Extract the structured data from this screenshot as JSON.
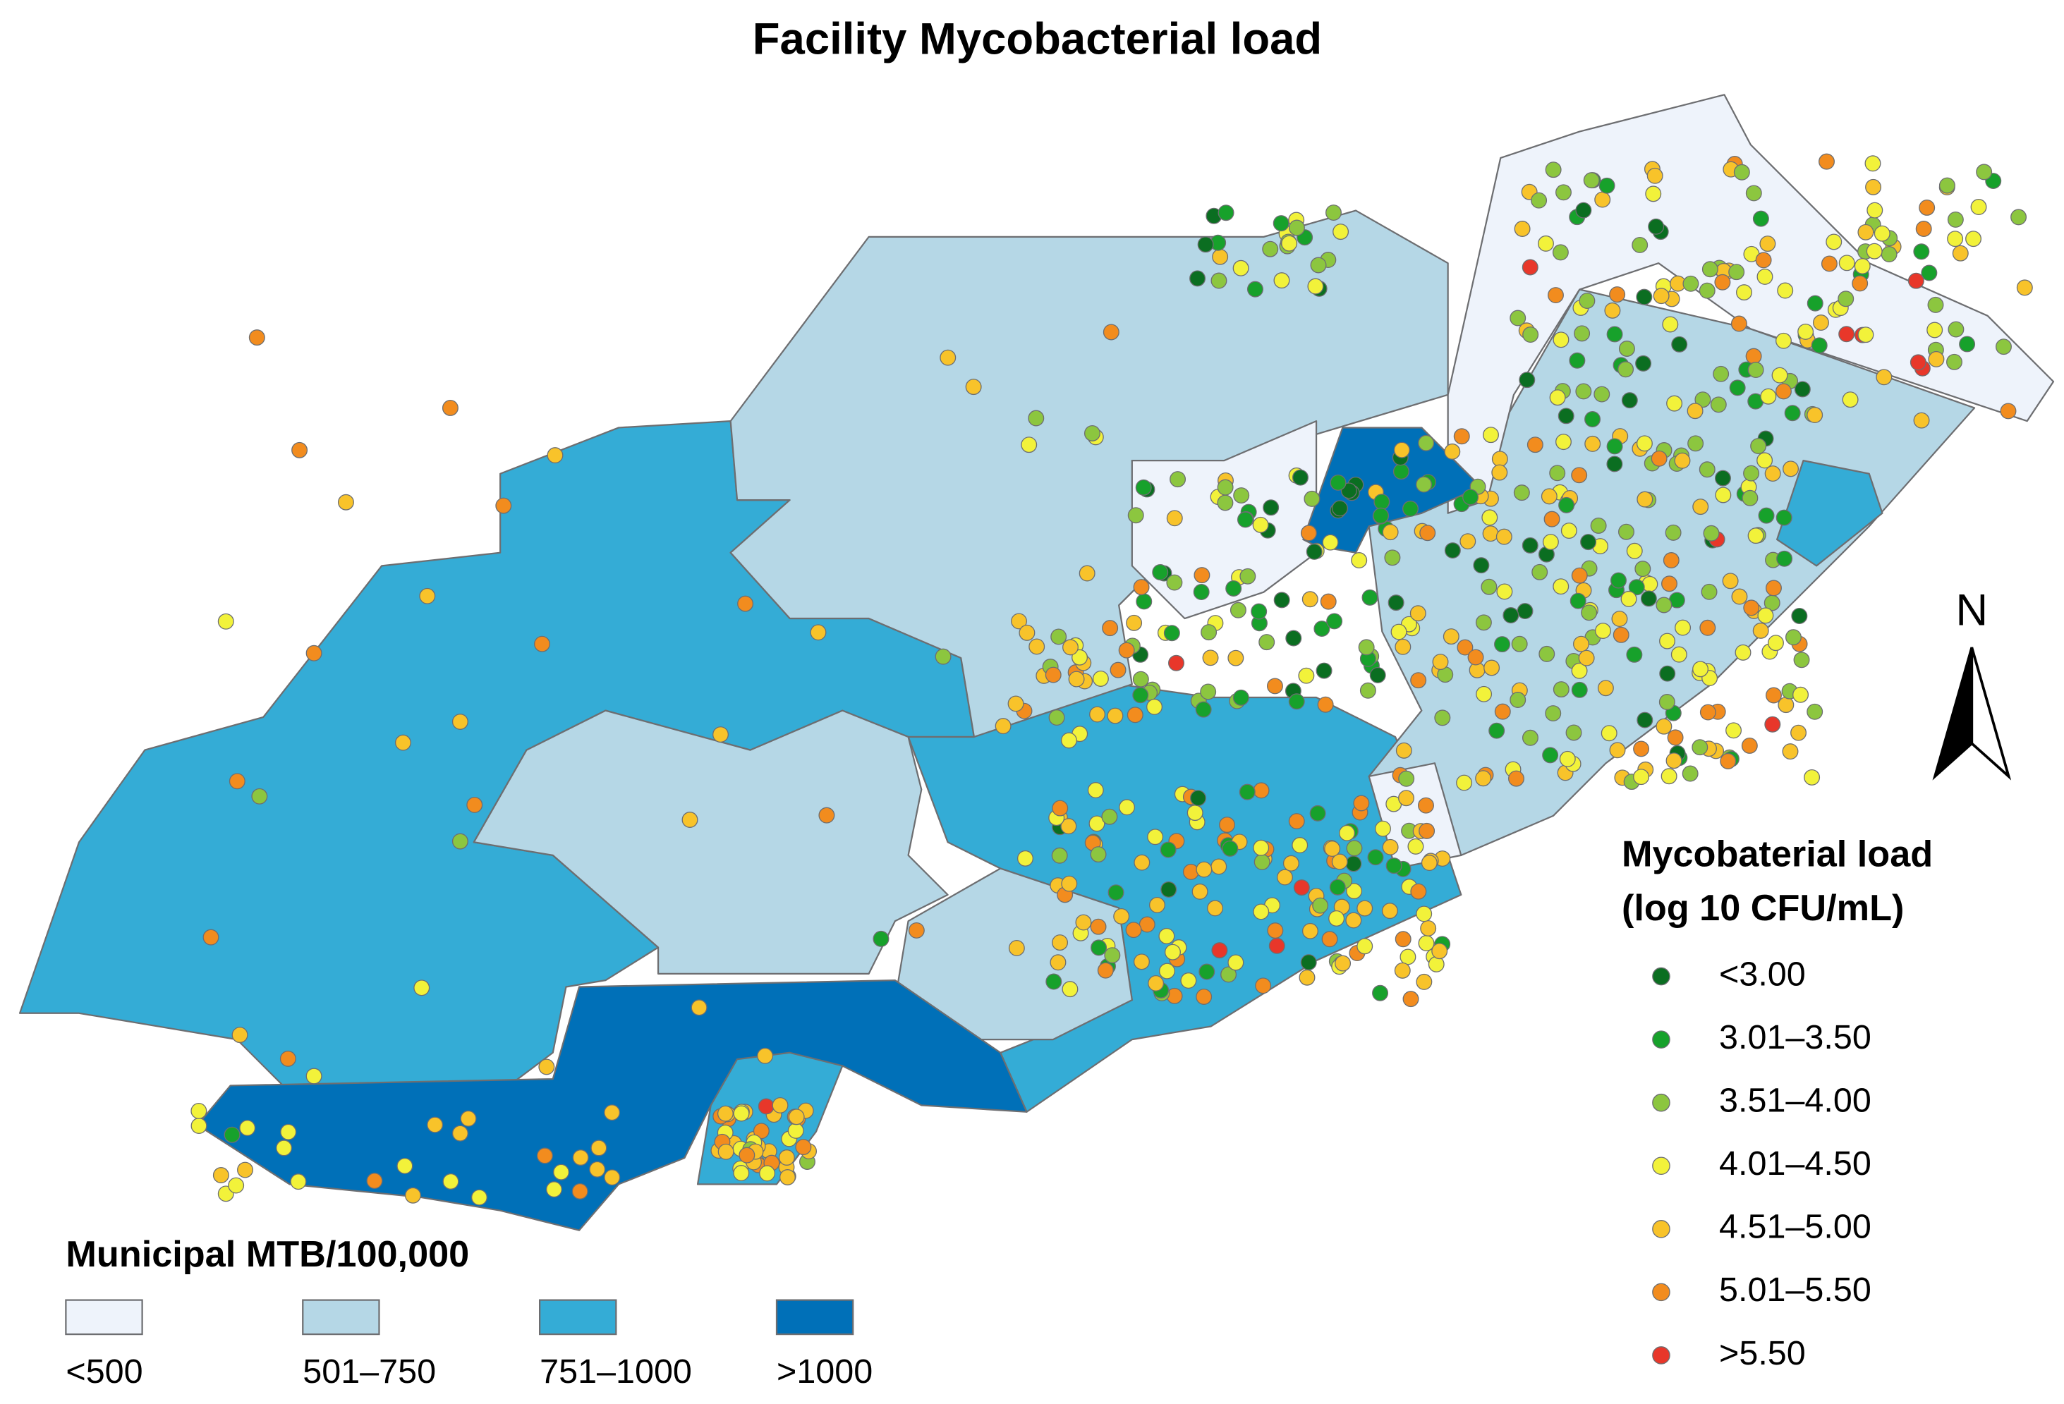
{
  "title": "Facility Mycobacterial load",
  "north_label": "N",
  "municipal_legend": {
    "title": "Municipal MTB/100,000",
    "items": [
      {
        "label": "<500",
        "color": "#eef3fb"
      },
      {
        "label": "501–750",
        "color": "#b5d7e6"
      },
      {
        "label": "751–1000",
        "color": "#34acd6"
      },
      {
        "label": ">1000",
        "color": "#0070b8"
      }
    ]
  },
  "load_legend": {
    "title": [
      "Mycobaterial load",
      "(log 10 CFU/mL)"
    ],
    "items": [
      {
        "label": "<3.00",
        "color": "#0b6e21"
      },
      {
        "label": "3.01–3.50",
        "color": "#17a12b"
      },
      {
        "label": "3.51–4.00",
        "color": "#8cc63f"
      },
      {
        "label": "4.01–4.50",
        "color": "#f2f23a"
      },
      {
        "label": "4.51–5.00",
        "color": "#f8c32a"
      },
      {
        "label": "5.01–5.50",
        "color": "#f28c1e"
      },
      {
        "label": ">5.50",
        "color": "#e8372a"
      }
    ]
  }
}
